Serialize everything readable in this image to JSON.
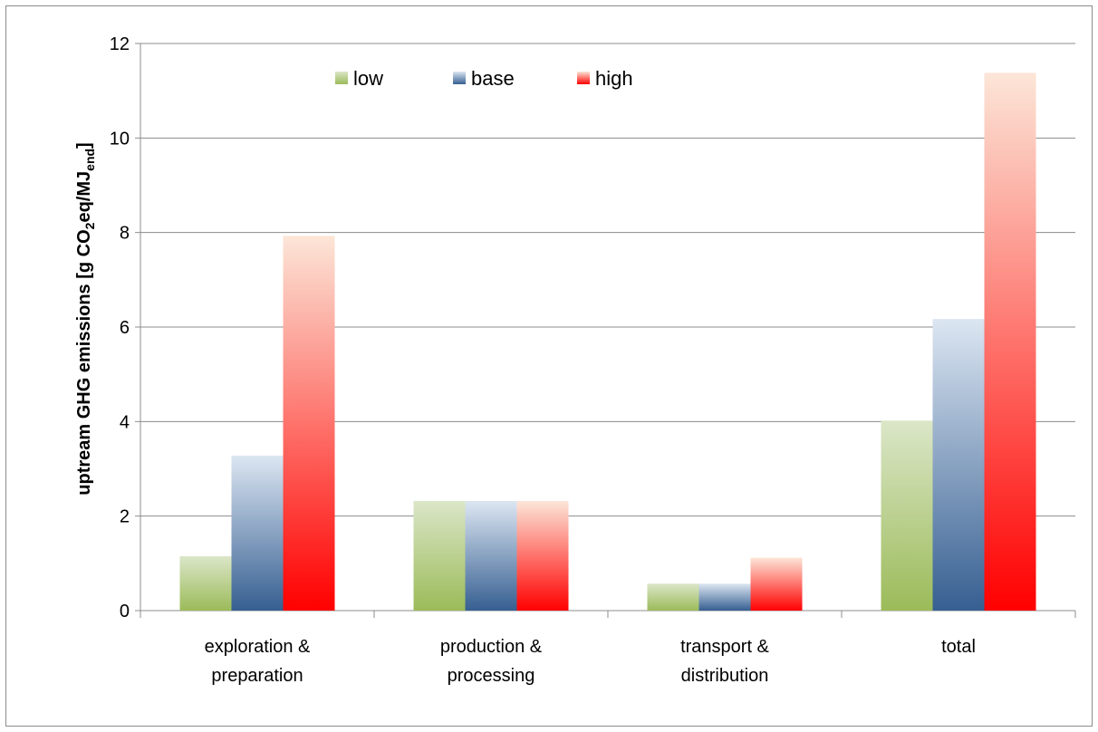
{
  "chart_data": {
    "type": "bar",
    "categories": [
      [
        "exploration &",
        "preparation"
      ],
      [
        "production &",
        "processing"
      ],
      [
        "transport &",
        "distribution"
      ],
      [
        "total"
      ]
    ],
    "series": [
      {
        "name": "low",
        "values": [
          1.15,
          2.32,
          0.57,
          4.02
        ],
        "color_top": "#dbe6c8",
        "color_bottom": "#9bbb59"
      },
      {
        "name": "base",
        "values": [
          3.28,
          2.32,
          0.57,
          6.17
        ],
        "color_top": "#dce6f2",
        "color_bottom": "#365f91"
      },
      {
        "name": "high",
        "values": [
          7.93,
          2.32,
          1.12,
          11.38
        ],
        "color_top": "#fce6d8",
        "color_bottom": "#ff0000"
      }
    ],
    "ylim": [
      0,
      12
    ],
    "yticks": [
      0,
      2,
      4,
      6,
      8,
      10,
      12
    ],
    "ylabel": {
      "main": "uptream GHG emissions [g CO",
      "sub1": "2",
      "mid": "eq/MJ",
      "sub2": "end",
      "end": "]"
    },
    "grid": true,
    "legend_position": "top-center"
  }
}
